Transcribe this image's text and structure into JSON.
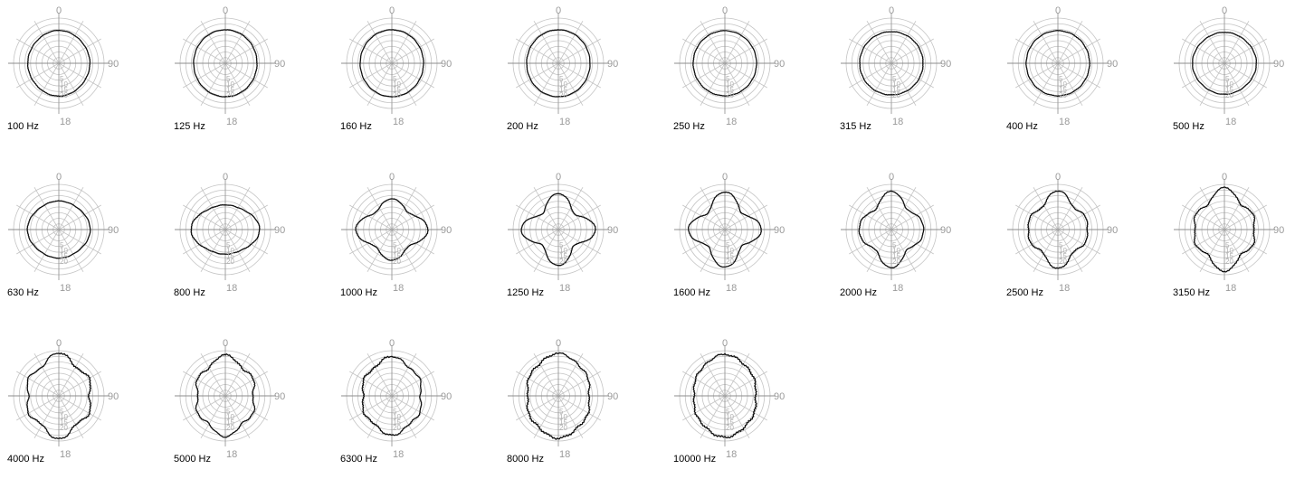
{
  "chart_data": {
    "type": "polar",
    "angle_ticks": [
      "0",
      "90",
      "18"
    ],
    "radial_tick_labels": [
      "5",
      "10",
      "15",
      "20"
    ],
    "colors": {
      "grid": "#c4c4c4",
      "axis": "#8c8c8c",
      "trace": "#111111",
      "tick_text": "#9a9a9a"
    },
    "charts": [
      {
        "label": "100 Hz",
        "a": 36,
        "b": 34,
        "k4": 0.01,
        "k6": 0.0,
        "dent": 0,
        "noise": 0.01
      },
      {
        "label": "125 Hz",
        "a": 37,
        "b": 35,
        "k4": 0.0,
        "k6": 0.0,
        "dent": 0,
        "noise": 0.01
      },
      {
        "label": "160 Hz",
        "a": 37,
        "b": 35,
        "k4": 0.0,
        "k6": 0.0,
        "dent": 0,
        "noise": 0.01
      },
      {
        "label": "200 Hz",
        "a": 37,
        "b": 35,
        "k4": 0.0,
        "k6": 0.0,
        "dent": 0,
        "noise": 0.01
      },
      {
        "label": "250 Hz",
        "a": 36,
        "b": 35,
        "k4": 0.0,
        "k6": 0.0,
        "dent": 0,
        "noise": 0.01
      },
      {
        "label": "315 Hz",
        "a": 35,
        "b": 35,
        "k4": 0.0,
        "k6": 0.0,
        "dent": 0,
        "noise": 0.012
      },
      {
        "label": "400 Hz",
        "a": 36,
        "b": 35,
        "k4": 0.0,
        "k6": 0.0,
        "dent": 0,
        "noise": 0.012
      },
      {
        "label": "500 Hz",
        "a": 34,
        "b": 35,
        "k4": 0.01,
        "k6": 0.0,
        "dent": 0,
        "noise": 0.012
      },
      {
        "label": "630 Hz",
        "a": 31,
        "b": 34,
        "k4": 0.02,
        "k6": 0.0,
        "dent": 0,
        "noise": 0.012
      },
      {
        "label": "800 Hz",
        "a": 26,
        "b": 36,
        "k4": 0.05,
        "k6": 0.0,
        "dent": 0,
        "noise": 0.015
      },
      {
        "label": "1000 Hz",
        "a": 29,
        "b": 34,
        "k4": 0.17,
        "k6": 0.0,
        "dent": 0,
        "noise": 0.015
      },
      {
        "label": "1250 Hz",
        "a": 32,
        "b": 33,
        "k4": 0.24,
        "k6": 0.0,
        "dent": 0,
        "noise": 0.015
      },
      {
        "label": "1600 Hz",
        "a": 34,
        "b": 33,
        "k4": 0.22,
        "k6": 0.0,
        "dent": 0,
        "noise": 0.018
      },
      {
        "label": "2000 Hz",
        "a": 36,
        "b": 32,
        "k4": 0.16,
        "k6": 0.05,
        "dent": 0.04,
        "noise": 0.02
      },
      {
        "label": "2500 Hz",
        "a": 38,
        "b": 31,
        "k4": 0.12,
        "k6": 0.07,
        "dent": 0.06,
        "noise": 0.022
      },
      {
        "label": "3150 Hz",
        "a": 42,
        "b": 32,
        "k4": 0.09,
        "k6": 0.08,
        "dent": 0.07,
        "noise": 0.025
      },
      {
        "label": "4000 Hz",
        "a": 45,
        "b": 34,
        "k4": 0.06,
        "k6": 0.08,
        "dent": 0.08,
        "noise": 0.03
      },
      {
        "label": "5000 Hz",
        "a": 43,
        "b": 31,
        "k4": 0.04,
        "k6": 0.07,
        "dent": 0.06,
        "noise": 0.035
      },
      {
        "label": "6300 Hz",
        "a": 42,
        "b": 32,
        "k4": 0.03,
        "k6": 0.05,
        "dent": 0.04,
        "noise": 0.035
      },
      {
        "label": "8000 Hz",
        "a": 46,
        "b": 34,
        "k4": 0.02,
        "k6": 0.03,
        "dent": 0.03,
        "noise": 0.035
      },
      {
        "label": "10000 Hz",
        "a": 45,
        "b": 34,
        "k4": 0.02,
        "k6": 0.02,
        "dent": 0.02,
        "noise": 0.035
      }
    ]
  }
}
